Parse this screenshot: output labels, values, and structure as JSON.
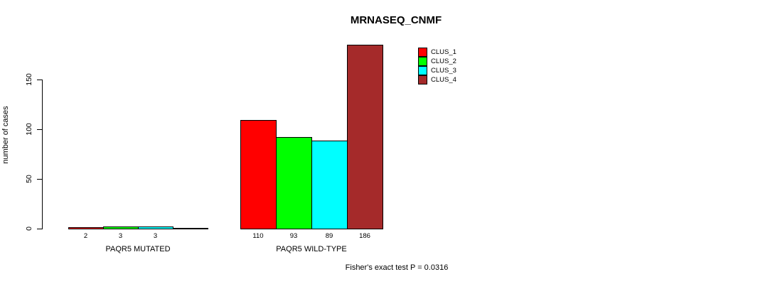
{
  "chart_data": {
    "type": "bar",
    "title": "MRNASEQ_CNMF",
    "ylabel": "number of cases",
    "xlabel": "",
    "yticks": [
      0,
      50,
      100,
      150
    ],
    "ylim": [
      0,
      186
    ],
    "grid": false,
    "legend_position": "top-right",
    "categories": [
      "PAQR5 MUTATED",
      "PAQR5 WILD-TYPE"
    ],
    "series": [
      {
        "name": "CLUS_1",
        "color": "#ff0000",
        "values": [
          2,
          110
        ]
      },
      {
        "name": "CLUS_2",
        "color": "#00ff00",
        "values": [
          3,
          93
        ]
      },
      {
        "name": "CLUS_3",
        "color": "#00ffff",
        "values": [
          3,
          89
        ]
      },
      {
        "name": "CLUS_4",
        "color": "#a52a2a",
        "values": [
          0,
          186
        ]
      }
    ],
    "groups": [
      {
        "label": "PAQR5 MUTATED",
        "values": [
          2,
          3,
          3,
          0
        ],
        "bar_labels": [
          "2",
          "3",
          "3",
          ""
        ]
      },
      {
        "label": "PAQR5 WILD-TYPE",
        "values": [
          110,
          93,
          89,
          186
        ],
        "bar_labels": [
          "110",
          "93",
          "89",
          "186"
        ]
      }
    ],
    "annotation": "Fisher's exact test P = 0.0316",
    "colors": {
      "background": "#ffffff",
      "axis": "#000000",
      "text": "#000000"
    }
  }
}
